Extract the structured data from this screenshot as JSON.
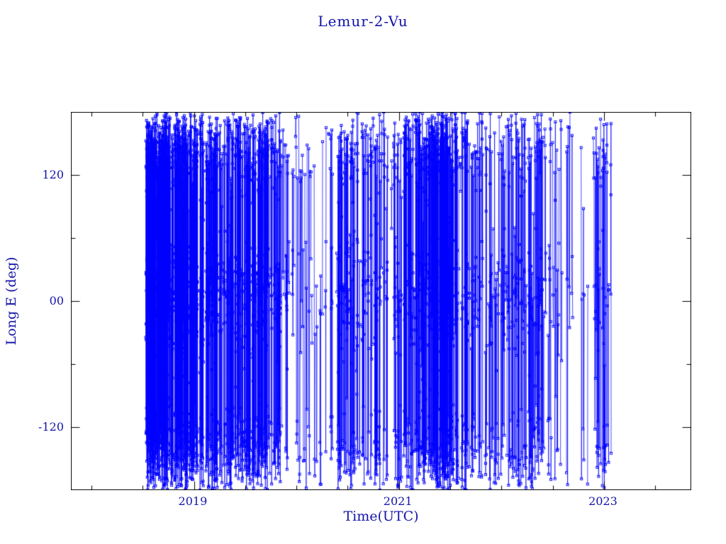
{
  "colors": {
    "data": "#0000ff",
    "text": "#1414aa",
    "frame": "#000000",
    "background": "#ffffff"
  },
  "chart_data": {
    "type": "line",
    "title": "Lemur-2-Vu",
    "xlabel": "Time(UTC)",
    "ylabel": "Long E (deg)",
    "xlim": [
      2017.8,
      2023.85
    ],
    "ylim": [
      -180,
      180
    ],
    "x_ticks": [
      {
        "value": 2019,
        "label": "2019"
      },
      {
        "value": 2021,
        "label": "2021"
      },
      {
        "value": 2023,
        "label": "2023"
      }
    ],
    "y_ticks": [
      {
        "value": 120,
        "label": "120"
      },
      {
        "value": 0,
        "label": "00"
      },
      {
        "value": -120,
        "label": "-120"
      }
    ],
    "x_minor_step": 0.5,
    "y_minor_step": 60,
    "grid": false,
    "legend": false,
    "marker": "open-square",
    "marker_size": 3,
    "series_generator": {
      "description": "Satellite sub-point longitude (deg E) vs time; dense wrapped ground-track passes drawn from a seeded generator",
      "seed": 20230814,
      "t_start": 2018.53,
      "t_end": 2023.07,
      "mean_passes_per_day": 5,
      "gap_probability": 0.18,
      "longitude_bands": [
        {
          "center": 145,
          "sigma": 24,
          "weight": 0.34
        },
        {
          "center": -145,
          "sigma": 24,
          "weight": 0.3
        },
        {
          "center": 5,
          "sigma": 30,
          "weight": 0.36
        }
      ]
    }
  }
}
